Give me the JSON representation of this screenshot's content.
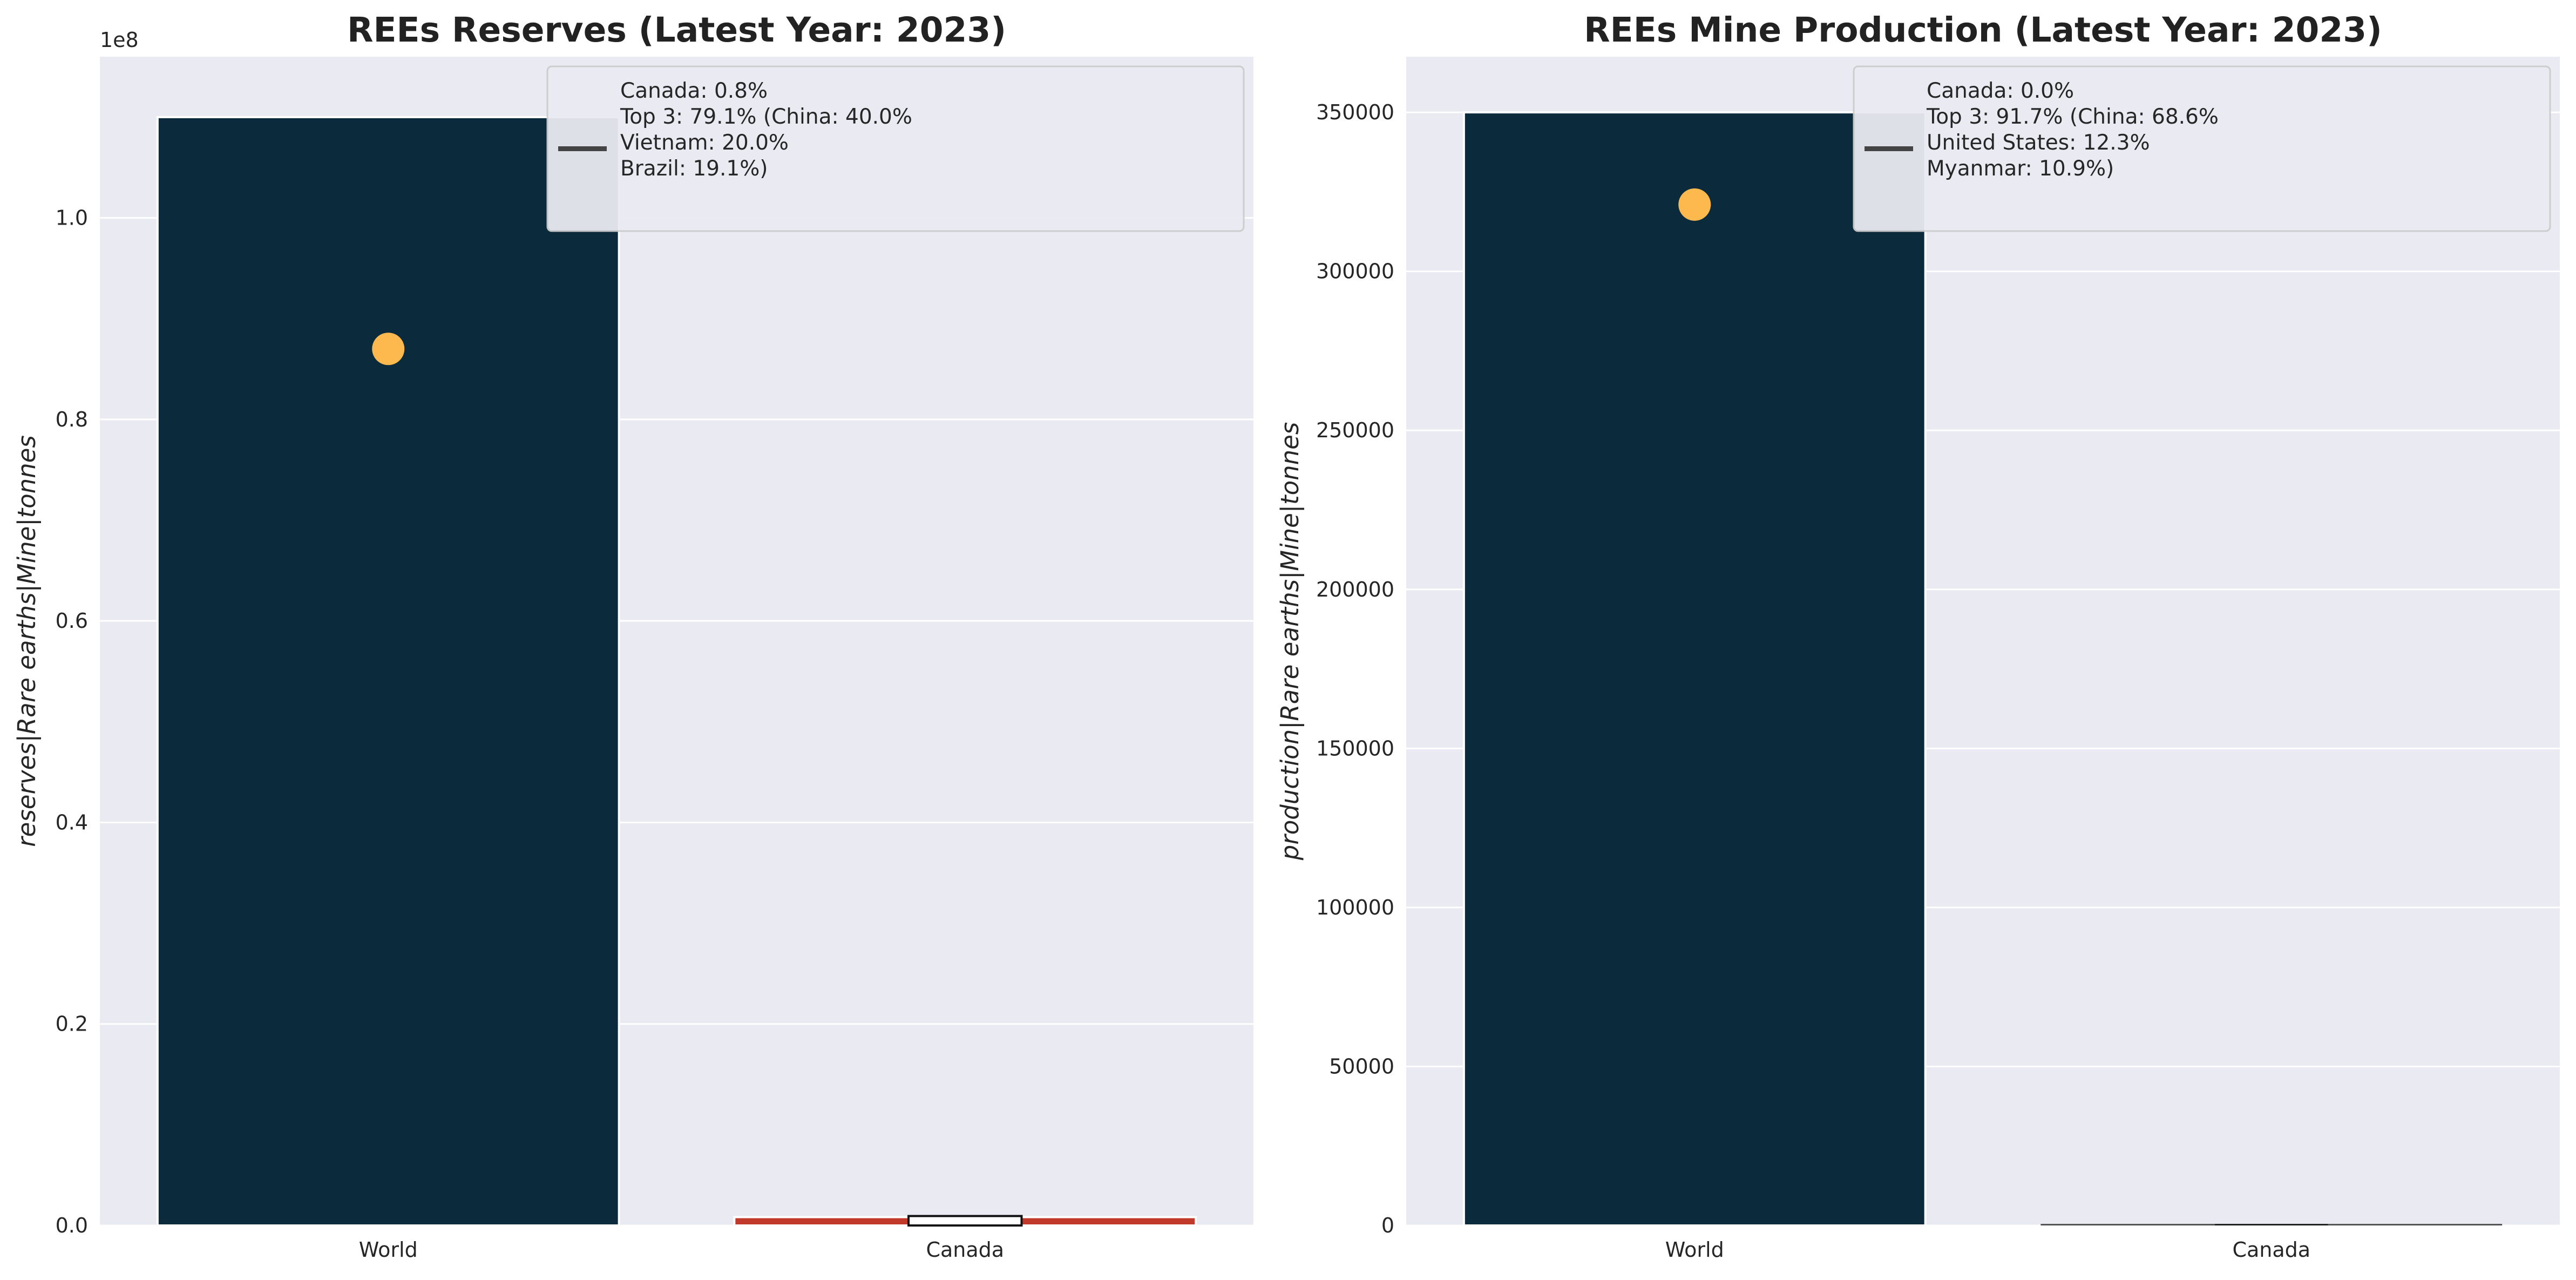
{
  "chart_data": [
    {
      "type": "bar",
      "title": "REEs Reserves (Latest Year: 2023)",
      "ylabel": "reserves|Rare earths|Mine|tonnes",
      "axis_offset_label": "1e8",
      "categories": [
        "World",
        "Canada"
      ],
      "values": [
        110000000,
        830000
      ],
      "bar_colors": [
        "#0b2b3d",
        "#c0392b"
      ],
      "ylim": [
        0,
        116000000
      ],
      "yticks": [
        0,
        20000000,
        40000000,
        60000000,
        80000000,
        100000000
      ],
      "ytick_labels": [
        "0.0",
        "0.2",
        "0.4",
        "0.6",
        "0.8",
        "1.0"
      ],
      "top3_marker": {
        "category": "World",
        "value": 87000000,
        "color": "#fdb94e"
      },
      "highlight_box": {
        "category": "Canada",
        "value": 830000
      },
      "grid": true,
      "legend_position": "top-right",
      "legend_lines": [
        "Canada: 0.8%",
        "Top 3: 79.1% (China: 40.0%",
        "Vietnam: 20.0%",
        "Brazil: 19.1%)"
      ]
    },
    {
      "type": "bar",
      "title": "REEs Mine Production (Latest Year: 2023)",
      "ylabel": "production|Rare earths|Mine|tonnes",
      "axis_offset_label": "",
      "categories": [
        "World",
        "Canada"
      ],
      "values": [
        350000,
        0
      ],
      "bar_colors": [
        "#0b2b3d",
        "#c0392b"
      ],
      "ylim": [
        0,
        367500
      ],
      "yticks": [
        0,
        50000,
        100000,
        150000,
        200000,
        250000,
        300000,
        350000
      ],
      "ytick_labels": [
        "0",
        "50000",
        "100000",
        "150000",
        "200000",
        "250000",
        "300000",
        "350000"
      ],
      "top3_marker": {
        "category": "World",
        "value": 321000,
        "color": "#fdb94e"
      },
      "highlight_box": {
        "category": "Canada",
        "value": 0
      },
      "grid": true,
      "legend_position": "top-right",
      "legend_lines": [
        "Canada: 0.0%",
        "Top 3: 91.7% (China: 68.6%",
        "United States: 12.3%",
        "Myanmar: 10.9%)"
      ]
    }
  ]
}
